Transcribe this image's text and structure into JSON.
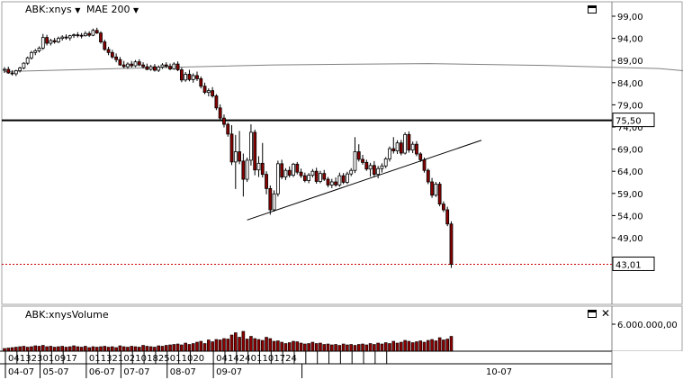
{
  "header": {
    "symbol": "ABK:xnys",
    "indicator": "MAE 200",
    "volume_title": "ABK:xnysVolume",
    "symbol_dropdown_icon": "caret-down-icon",
    "indicator_dropdown_icon": "caret-down-icon",
    "maximize_icon": "window-maximize-icon",
    "close_icon": "close-icon"
  },
  "colors": {
    "up": "#ffffff",
    "down": "#8b0000",
    "wick": "#000000",
    "ma": "#808080",
    "hline": "#000000",
    "last_line": "#cc0000",
    "grid": "#808080"
  },
  "chart_data": [
    {
      "type": "candlestick",
      "title": "",
      "xlabel": "",
      "ylabel": "",
      "y_axis_ticks": [
        "99,00",
        "94,00",
        "89,00",
        "84,00",
        "79,00",
        "74,00",
        "69,00",
        "64,00",
        "59,00",
        "54,00",
        "49,00"
      ],
      "ylim": [
        40,
        100
      ],
      "grid": false,
      "price_labels": {
        "horizontal_line": "75,50",
        "last_price": "43,01"
      },
      "horizontal_line_value": 75.5,
      "last_price_value": 43.01,
      "trendline": {
        "from": [
          "08-07 01",
          53.0
        ],
        "to": [
          "10-07 end",
          71.0
        ]
      },
      "ma200": [
        [
          0,
          86.5
        ],
        [
          30,
          87.2
        ],
        [
          70,
          88.0
        ],
        [
          110,
          88.3
        ],
        [
          140,
          87.9
        ],
        [
          170,
          87.2
        ],
        [
          185,
          86.0
        ],
        [
          210,
          83.0
        ],
        [
          230,
          81.0
        ],
        [
          237,
          79.8
        ],
        [
          248,
          78.2
        ],
        [
          260,
          77.3
        ],
        [
          272,
          76.5
        ],
        [
          278,
          75.8
        ],
        [
          284,
          74.8
        ],
        [
          291,
          73.0
        ]
      ],
      "ohlc": [
        [
          0,
          86.8,
          87.5,
          86.2,
          87.0
        ],
        [
          1,
          87.0,
          87.6,
          86.0,
          86.2
        ],
        [
          2,
          86.2,
          86.8,
          85.6,
          86.0
        ],
        [
          3,
          86.0,
          86.9,
          85.5,
          86.7
        ],
        [
          4,
          86.7,
          87.6,
          86.3,
          87.3
        ],
        [
          5,
          87.3,
          88.6,
          87.0,
          88.4
        ],
        [
          6,
          88.4,
          89.9,
          88.0,
          89.6
        ],
        [
          7,
          89.6,
          91.2,
          89.2,
          90.8
        ],
        [
          8,
          90.8,
          91.6,
          90.2,
          91.2
        ],
        [
          9,
          91.2,
          92.2,
          90.8,
          91.8
        ],
        [
          10,
          91.8,
          95.0,
          91.4,
          94.2
        ],
        [
          11,
          94.2,
          94.8,
          92.4,
          92.9
        ],
        [
          12,
          92.9,
          93.9,
          92.4,
          93.5
        ],
        [
          13,
          93.5,
          94.1,
          92.8,
          93.2
        ],
        [
          14,
          93.2,
          94.4,
          92.9,
          94.0
        ],
        [
          15,
          94.0,
          94.7,
          93.5,
          94.3
        ],
        [
          16,
          94.3,
          94.9,
          93.7,
          94.1
        ],
        [
          17,
          94.1,
          94.8,
          93.5,
          94.6
        ],
        [
          18,
          94.6,
          95.1,
          94.1,
          94.8
        ],
        [
          19,
          94.8,
          95.4,
          94.2,
          94.7
        ],
        [
          20,
          94.7,
          95.2,
          94.0,
          94.6
        ],
        [
          21,
          94.6,
          95.6,
          94.4,
          95.1
        ],
        [
          22,
          95.1,
          95.6,
          94.3,
          94.7
        ],
        [
          23,
          94.7,
          96.2,
          94.5,
          95.8
        ],
        [
          24,
          95.8,
          96.4,
          95.0,
          95.2
        ],
        [
          25,
          95.2,
          95.6,
          92.8,
          93.2
        ],
        [
          26,
          93.2,
          93.7,
          91.2,
          91.5
        ],
        [
          27,
          91.5,
          92.1,
          90.2,
          90.8
        ],
        [
          28,
          90.8,
          91.4,
          89.4,
          89.8
        ],
        [
          29,
          89.8,
          90.6,
          88.6,
          89.2
        ],
        [
          30,
          89.2,
          89.8,
          87.8,
          88.0
        ],
        [
          31,
          88.0,
          88.9,
          87.3,
          87.6
        ],
        [
          32,
          87.6,
          88.6,
          87.1,
          88.2
        ],
        [
          33,
          88.2,
          88.9,
          87.4,
          87.8
        ],
        [
          34,
          87.8,
          89.1,
          87.5,
          88.7
        ],
        [
          35,
          88.7,
          89.3,
          87.7,
          88.0
        ],
        [
          36,
          88.0,
          88.6,
          87.2,
          87.6
        ],
        [
          37,
          87.6,
          88.3,
          86.8,
          87.0
        ],
        [
          38,
          87.0,
          88.0,
          86.7,
          87.6
        ],
        [
          39,
          87.6,
          88.2,
          86.5,
          86.8
        ],
        [
          40,
          86.8,
          87.9,
          86.4,
          87.5
        ],
        [
          41,
          87.5,
          88.4,
          87.1,
          88.0
        ],
        [
          42,
          88.0,
          88.6,
          87.3,
          87.7
        ],
        [
          43,
          87.7,
          88.3,
          86.8,
          87.1
        ],
        [
          44,
          87.1,
          88.6,
          86.9,
          88.2
        ],
        [
          45,
          88.2,
          88.8,
          86.6,
          86.9
        ],
        [
          46,
          86.9,
          87.4,
          84.1,
          84.6
        ],
        [
          47,
          84.6,
          86.4,
          84.2,
          85.9
        ],
        [
          48,
          85.9,
          86.9,
          84.3,
          84.7
        ],
        [
          49,
          84.7,
          86.1,
          84.0,
          85.6
        ],
        [
          50,
          85.6,
          86.5,
          84.4,
          84.9
        ],
        [
          51,
          84.9,
          85.4,
          82.7,
          83.2
        ],
        [
          52,
          83.2,
          84.0,
          81.4,
          81.8
        ],
        [
          53,
          81.8,
          82.7,
          80.9,
          82.2
        ],
        [
          54,
          82.2,
          83.0,
          80.6,
          81.0
        ],
        [
          55,
          81.0,
          81.4,
          77.8,
          78.3
        ],
        [
          56,
          78.3,
          79.1,
          75.5,
          76.0
        ],
        [
          57,
          76.0,
          76.8,
          73.9,
          74.6
        ],
        [
          58,
          74.6,
          75.0,
          71.8,
          72.4
        ],
        [
          59,
          72.4,
          74.4,
          65.4,
          66.1
        ],
        [
          60,
          66.1,
          72.2,
          60.0,
          68.4
        ],
        [
          61,
          68.4,
          73.1,
          65.6,
          66.3
        ],
        [
          62,
          66.3,
          68.0,
          58.3,
          62.2
        ],
        [
          63,
          62.2,
          67.1,
          61.6,
          66.5
        ],
        [
          64,
          66.5,
          74.6,
          65.3,
          72.8
        ],
        [
          65,
          72.8,
          73.4,
          63.1,
          64.3
        ],
        [
          66,
          64.3,
          67.4,
          62.7,
          65.8
        ],
        [
          67,
          65.8,
          70.4,
          62.6,
          63.3
        ],
        [
          68,
          63.3,
          64.0,
          58.8,
          60.1
        ],
        [
          69,
          60.1,
          60.8,
          54.2,
          55.3
        ],
        [
          70,
          55.3,
          59.7,
          54.9,
          58.9
        ],
        [
          71,
          58.9,
          66.4,
          58.3,
          65.7
        ],
        [
          72,
          65.7,
          66.6,
          62.2,
          62.7
        ],
        [
          73,
          62.7,
          64.7,
          62.0,
          64.2
        ],
        [
          74,
          64.2,
          65.1,
          62.6,
          63.1
        ],
        [
          75,
          63.1,
          65.9,
          62.7,
          65.6
        ],
        [
          76,
          65.6,
          66.1,
          63.3,
          63.8
        ],
        [
          77,
          63.8,
          64.6,
          62.5,
          63.0
        ],
        [
          78,
          63.0,
          63.7,
          61.5,
          61.9
        ],
        [
          79,
          61.9,
          63.6,
          61.3,
          63.1
        ],
        [
          80,
          63.1,
          64.5,
          62.6,
          64.0
        ],
        [
          81,
          64.0,
          64.8,
          61.2,
          61.7
        ],
        [
          82,
          61.7,
          64.1,
          61.3,
          63.5
        ],
        [
          83,
          63.5,
          64.3,
          61.8,
          62.2
        ],
        [
          84,
          62.2,
          62.7,
          60.4,
          60.9
        ],
        [
          85,
          60.9,
          62.3,
          60.2,
          61.6
        ],
        [
          86,
          61.6,
          62.6,
          60.5,
          60.9
        ],
        [
          87,
          60.9,
          63.7,
          60.5,
          63.0
        ],
        [
          88,
          63.0,
          63.6,
          61.1,
          61.5
        ],
        [
          89,
          61.5,
          63.9,
          61.1,
          63.4
        ],
        [
          90,
          63.4,
          64.7,
          62.9,
          64.2
        ],
        [
          91,
          64.2,
          71.7,
          63.6,
          68.4
        ],
        [
          92,
          68.4,
          70.1,
          66.2,
          66.7
        ],
        [
          93,
          66.7,
          67.7,
          65.5,
          66.0
        ],
        [
          94,
          66.0,
          66.6,
          64.1,
          64.5
        ],
        [
          95,
          64.5,
          65.9,
          62.8,
          65.3
        ],
        [
          96,
          65.3,
          66.3,
          62.7,
          63.3
        ],
        [
          97,
          63.3,
          65.2,
          62.4,
          64.6
        ],
        [
          98,
          64.6,
          65.8,
          63.7,
          65.2
        ],
        [
          99,
          65.2,
          67.2,
          64.7,
          66.8
        ],
        [
          100,
          66.8,
          69.6,
          66.2,
          69.1
        ],
        [
          101,
          69.1,
          71.7,
          68.0,
          68.6
        ],
        [
          102,
          68.6,
          71.0,
          67.9,
          70.4
        ],
        [
          103,
          70.4,
          71.1,
          67.6,
          68.1
        ],
        [
          104,
          68.1,
          72.8,
          67.8,
          72.3
        ],
        [
          105,
          72.3,
          73.0,
          68.2,
          68.8
        ],
        [
          106,
          68.8,
          70.7,
          68.1,
          70.1
        ],
        [
          107,
          70.1,
          70.8,
          67.4,
          67.9
        ],
        [
          108,
          67.9,
          68.3,
          66.1,
          66.6
        ],
        [
          109,
          66.6,
          67.1,
          63.7,
          64.2
        ],
        [
          110,
          64.2,
          64.6,
          61.1,
          61.6
        ],
        [
          111,
          61.6,
          62.5,
          58.0,
          58.6
        ],
        [
          112,
          58.6,
          61.6,
          58.2,
          61.1
        ],
        [
          113,
          61.1,
          61.6,
          56.1,
          56.6
        ],
        [
          114,
          56.6,
          57.2,
          54.8,
          55.3
        ],
        [
          115,
          55.3,
          56.0,
          51.6,
          52.1
        ],
        [
          116,
          52.1,
          52.7,
          42.2,
          43.01
        ]
      ],
      "x_labels": [
        {
          "i": 0,
          "label": "04"
        },
        {
          "i": 3,
          "label": "13"
        },
        {
          "i": 6,
          "label": "23"
        },
        {
          "i": 9,
          "label": "01"
        },
        {
          "i": 12,
          "label": "09"
        },
        {
          "i": 15,
          "label": "17"
        },
        {
          "i": 21,
          "label": "01"
        },
        {
          "i": 24,
          "label": "13"
        },
        {
          "i": 27,
          "label": "21"
        },
        {
          "i": 30,
          "label": "02"
        },
        {
          "i": 33,
          "label": "10"
        },
        {
          "i": 36,
          "label": "18"
        },
        {
          "i": 39,
          "label": "25"
        },
        {
          "i": 42,
          "label": "01"
        },
        {
          "i": 45,
          "label": "10"
        },
        {
          "i": 48,
          "label": "20"
        },
        {
          "i": 54,
          "label": "04"
        },
        {
          "i": 57,
          "label": "14"
        },
        {
          "i": 60,
          "label": "24"
        },
        {
          "i": 63,
          "label": "01"
        },
        {
          "i": 66,
          "label": "10"
        },
        {
          "i": 69,
          "label": "17"
        },
        {
          "i": 72,
          "label": "24"
        }
      ],
      "month_labels": [
        {
          "i": 0,
          "label": "04-07"
        },
        {
          "i": 9,
          "label": "05-07"
        },
        {
          "i": 21,
          "label": "06-07"
        },
        {
          "i": 30,
          "label": "07-07"
        },
        {
          "i": 42,
          "label": "08-07"
        },
        {
          "i": 54,
          "label": "09-07"
        },
        {
          "i": 77,
          "label": "10-07"
        }
      ]
    },
    {
      "type": "bar",
      "title": "",
      "xlabel": "",
      "ylabel": "",
      "y_axis_ticks": [
        "6.000.000,00"
      ],
      "ylim": [
        0,
        10000000
      ],
      "grid": false,
      "volume": [
        600000,
        700000,
        800000,
        900000,
        1000000,
        1100000,
        900000,
        1000000,
        1200000,
        1100000,
        1300000,
        1000000,
        1100000,
        900000,
        1000000,
        1100000,
        900000,
        1000000,
        1200000,
        1000000,
        900000,
        1100000,
        800000,
        1000000,
        900000,
        1000000,
        1100000,
        900000,
        1000000,
        800000,
        1200000,
        1000000,
        900000,
        1100000,
        1000000,
        900000,
        1300000,
        1100000,
        1000000,
        900000,
        1200000,
        1100000,
        1300000,
        1400000,
        1500000,
        1600000,
        1400000,
        1800000,
        1500000,
        1700000,
        2000000,
        2200000,
        1700000,
        2500000,
        2100000,
        2600000,
        2500000,
        2800000,
        2700000,
        3600000,
        4100000,
        3100000,
        4400000,
        2700000,
        3300000,
        2800000,
        2600000,
        2400000,
        3100000,
        2800000,
        2200000,
        2300000,
        2000000,
        1700000,
        1900000,
        2200000,
        2100000,
        1800000,
        1600000,
        1700000,
        2000000,
        1700000,
        1800000,
        1500000,
        1600000,
        1400000,
        1500000,
        1300000,
        1600000,
        1400000,
        1500000,
        1300000,
        1500000,
        1600000,
        1400000,
        1700000,
        1500000,
        1800000,
        1600000,
        1900000,
        1700000,
        2200000,
        1800000,
        2000000,
        2400000,
        2200000,
        1900000,
        2100000,
        2300000,
        2000000,
        2400000,
        2600000,
        2300000,
        3000000,
        2500000,
        2700000,
        3300000
      ]
    }
  ]
}
